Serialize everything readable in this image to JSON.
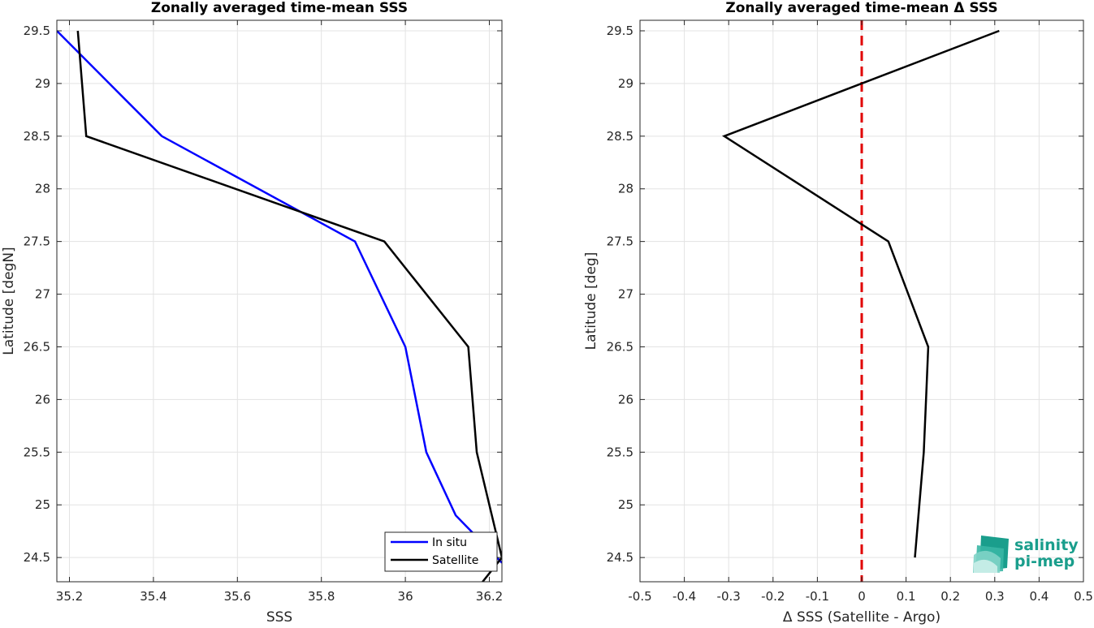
{
  "chart_data": [
    {
      "type": "line",
      "title": "Zonally averaged time-mean SSS",
      "xlabel": "SSS",
      "ylabel": "Latitude [degN]",
      "xlim": [
        35.17,
        36.23
      ],
      "ylim": [
        24.27,
        29.6
      ],
      "xticks": [
        35.2,
        35.4,
        35.6,
        35.8,
        36,
        36.2
      ],
      "xtick_labels": [
        "35.2",
        "35.4",
        "35.6",
        "35.8",
        "36",
        "36.2"
      ],
      "yticks": [
        24.5,
        25,
        25.5,
        26,
        26.5,
        27,
        27.5,
        28,
        28.5,
        29,
        29.5
      ],
      "ytick_labels": [
        "24.5",
        "25",
        "25.5",
        "26",
        "26.5",
        "27",
        "27.5",
        "28",
        "28.5",
        "29",
        "29.5"
      ],
      "grid": true,
      "legend_position": "bottom-right",
      "series": [
        {
          "name": "In situ",
          "color": "#0000ff",
          "x": [
            36.23,
            36.12,
            36.05,
            36.0,
            35.88,
            35.42,
            35.17
          ],
          "y": [
            24.45,
            24.9,
            25.5,
            26.5,
            27.5,
            28.5,
            29.5
          ]
        },
        {
          "name": "Satellite",
          "color": "#000000",
          "x": [
            36.18,
            36.23,
            36.17,
            36.15,
            35.95,
            35.24,
            35.22
          ],
          "y": [
            24.25,
            24.5,
            25.5,
            26.5,
            27.5,
            28.5,
            29.5
          ]
        }
      ]
    },
    {
      "type": "line",
      "title": "Zonally averaged time-mean Δ SSS",
      "xlabel": "Δ SSS (Satellite - Argo)",
      "ylabel": "Latitude [deg]",
      "xlim": [
        -0.5,
        0.5
      ],
      "ylim": [
        24.27,
        29.6
      ],
      "xticks": [
        -0.5,
        -0.4,
        -0.3,
        -0.2,
        -0.1,
        0,
        0.1,
        0.2,
        0.3,
        0.4,
        0.5
      ],
      "xtick_labels": [
        "-0.5",
        "-0.4",
        "-0.3",
        "-0.2",
        "-0.1",
        "0",
        "0.1",
        "0.2",
        "0.3",
        "0.4",
        "0.5"
      ],
      "yticks": [
        24.5,
        25,
        25.5,
        26,
        26.5,
        27,
        27.5,
        28,
        28.5,
        29,
        29.5
      ],
      "ytick_labels": [
        "24.5",
        "25",
        "25.5",
        "26",
        "26.5",
        "27",
        "27.5",
        "28",
        "28.5",
        "29",
        "29.5"
      ],
      "grid": true,
      "series": [
        {
          "color": "#000000",
          "x": [
            0.12,
            0.14,
            0.145,
            0.15,
            0.06,
            -0.31,
            0.31
          ],
          "y": [
            24.5,
            25.5,
            26.0,
            26.5,
            27.5,
            28.5,
            29.5
          ]
        }
      ],
      "reference_line": {
        "x": 0,
        "color": "#e00000",
        "style": "dashed"
      }
    }
  ],
  "logo": {
    "line1": "salinity",
    "line2": "pi-mep"
  }
}
